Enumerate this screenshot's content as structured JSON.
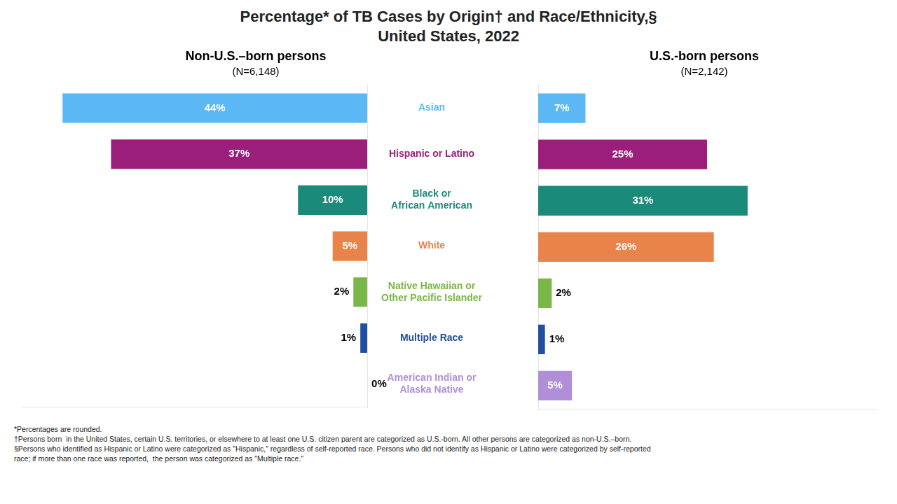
{
  "title": "Percentage* of TB Cases by Origin† and Race/Ethnicity,§",
  "subtitle": "United States, 2022",
  "annotations": [
    "*Percentages are rounded.",
    "†Persons born  in the United States, certain U.S. territories, or elsewhere to at least one U.S. citizen parent are categorized as U.S.-born. All other persons are categorized as non-U.S.–born.",
    "§Persons who identified as Hispanic or Latino were categorized as \"Hispanic,\" regardless of self-reported race. Persons who did not identify as Hispanic or Latino were categorized by self-reported",
    "race; if more than one race was reported,  the person was categorized as \"Multiple race.\""
  ],
  "chart_data": [
    {
      "type": "bar",
      "orientation": "horizontal",
      "title": "Non-U.S.–born persons",
      "subtitle": "(N=6,148)",
      "categories": [
        "Asian",
        "Hispanic or Latino",
        "Black or\nAfrican American",
        "White",
        "Native Hawaiian or\nOther Pacific Islander",
        "Multiple Race",
        "American Indian or\nAlaska Native"
      ],
      "values": [
        44,
        37,
        10,
        5,
        2,
        1,
        0
      ],
      "value_labels": [
        "44%",
        "37%",
        "10%",
        "5%",
        "2%",
        "1%",
        "0%"
      ],
      "colors": [
        "#5bb8f5",
        "#9b1f7a",
        "#1a8a7a",
        "#e8834a",
        "#7ab648",
        "#1f4fa0",
        "#b08fd8"
      ],
      "xlim": [
        0,
        50
      ],
      "data_labels": true,
      "tick_labels": "y",
      "grid": false
    },
    {
      "type": "bar",
      "orientation": "horizontal",
      "title": "U.S.-born persons",
      "subtitle": "(N=2,142)",
      "categories": [
        "Asian",
        "Hispanic or Latino",
        "Black or\nAfrican American",
        "White",
        "Native Hawaiian or\nOther Pacific Islander",
        "Multiple Race",
        "American Indian or\nAlaska Native"
      ],
      "values": [
        7,
        25,
        31,
        26,
        2,
        1,
        5
      ],
      "value_labels": [
        "7%",
        "25%",
        "31%",
        "26%",
        "2%",
        "1%",
        "5%"
      ],
      "colors": [
        "#5bb8f5",
        "#9b1f7a",
        "#1a8a7a",
        "#e8834a",
        "#7ab648",
        "#1f4fa0",
        "#b08fd8"
      ],
      "xlim": [
        0,
        50
      ],
      "data_labels": true,
      "tick_labels": false,
      "grid": false
    }
  ]
}
